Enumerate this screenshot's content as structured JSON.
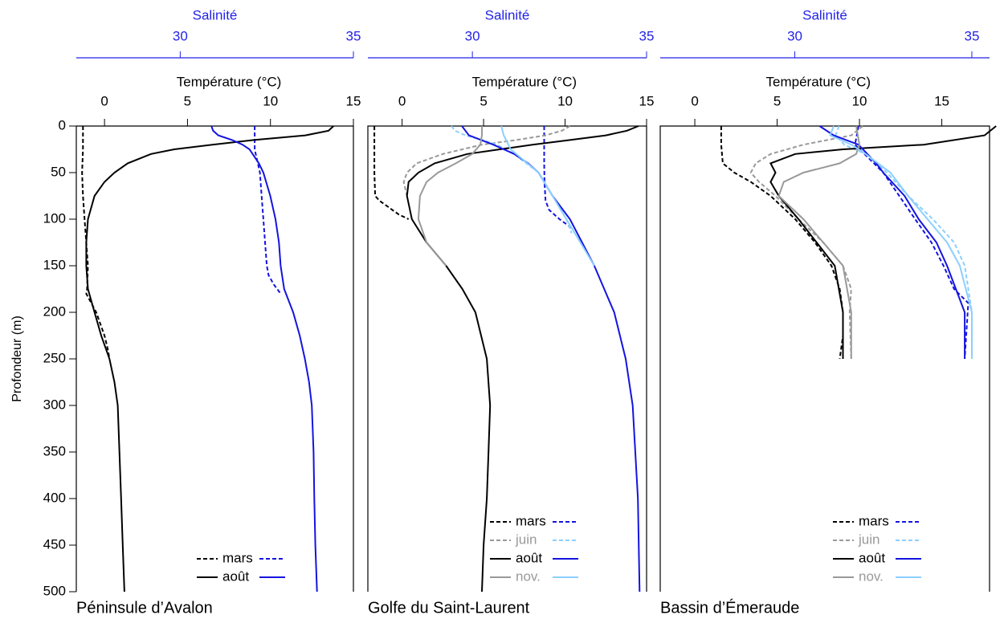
{
  "chart_data": [
    {
      "type": "line",
      "title": "Péninsule d’Avalon",
      "xlabel": "Température (°C)",
      "x2label": "Salinité",
      "ylabel": "Profondeur (m)",
      "xlim": [
        -1.7,
        15
      ],
      "xticks": [
        0,
        5,
        10,
        15
      ],
      "x2lim": [
        27,
        35
      ],
      "x2ticks": [
        30,
        35
      ],
      "x2color": "#2323e8",
      "ylim": [
        0,
        500
      ],
      "invert_y": true,
      "yticks": [
        0,
        50,
        100,
        150,
        200,
        250,
        300,
        350,
        400,
        450,
        500
      ],
      "series": [
        {
          "name": "mars",
          "temperature": {
            "color": "#000000",
            "dash": true,
            "depth": [
              0,
              25,
              50,
              75,
              100,
              125,
              150,
              175,
              180,
              190,
              200,
              210,
              225,
              240,
              250
            ],
            "values": [
              -1.3,
              -1.3,
              -1.35,
              -1.3,
              -1.2,
              -1.1,
              -1.0,
              -1.05,
              -1.1,
              -0.8,
              -0.5,
              -0.3,
              0.0,
              0.2,
              0.3
            ]
          },
          "salinity": {
            "color": "#1414e0",
            "dash": true,
            "depth": [
              0,
              25,
              50,
              75,
              100,
              125,
              150,
              160,
              170,
              180
            ],
            "values": [
              32.15,
              32.15,
              32.3,
              32.35,
              32.4,
              32.45,
              32.5,
              32.55,
              32.7,
              32.9
            ]
          }
        },
        {
          "name": "août",
          "temperature": {
            "color": "#000000",
            "dash": false,
            "depth": [
              0,
              5,
              10,
              15,
              20,
              25,
              30,
              40,
              50,
              60,
              75,
              100,
              125,
              150,
              175,
              200,
              225,
              250,
              275,
              300,
              350,
              400,
              450,
              500
            ],
            "values": [
              13.8,
              13.5,
              12.1,
              9.0,
              6.5,
              4.2,
              2.8,
              1.4,
              0.6,
              0.0,
              -0.6,
              -1.0,
              -1.1,
              -1.1,
              -1.0,
              -0.6,
              -0.2,
              0.3,
              0.6,
              0.8,
              0.9,
              1.0,
              1.1,
              1.2
            ]
          },
          "salinity": {
            "color": "#1414e0",
            "dash": false,
            "depth": [
              0,
              5,
              10,
              15,
              20,
              25,
              40,
              50,
              75,
              100,
              125,
              150,
              175,
              200,
              225,
              250,
              275,
              300,
              350,
              400,
              450,
              500
            ],
            "values": [
              30.9,
              30.95,
              31.1,
              31.5,
              31.8,
              32.0,
              32.27,
              32.4,
              32.6,
              32.75,
              32.85,
              32.9,
              33.0,
              33.26,
              33.45,
              33.6,
              33.72,
              33.8,
              33.85,
              33.87,
              33.9,
              33.95
            ]
          }
        }
      ]
    },
    {
      "type": "line",
      "title": "Golfe du Saint-Laurent",
      "xlabel": "Température (°C)",
      "x2label": "Salinité",
      "xlim": [
        -2.1,
        15
      ],
      "xticks": [
        0,
        5,
        10,
        15
      ],
      "x2lim": [
        27,
        35
      ],
      "x2ticks": [
        30,
        35
      ],
      "x2color": "#2323e8",
      "ylim": [
        0,
        500
      ],
      "invert_y": true,
      "series": [
        {
          "name": "mars",
          "temperature": {
            "color": "#000000",
            "dash": true,
            "depth": [
              0,
              25,
              50,
              75,
              80,
              85,
              90,
              95,
              100
            ],
            "values": [
              -1.7,
              -1.7,
              -1.7,
              -1.65,
              -1.4,
              -1.0,
              -0.6,
              -0.2,
              0.4
            ]
          },
          "salinity": {
            "color": "#1414e0",
            "dash": true,
            "depth": [
              0,
              20,
              40,
              60,
              80,
              90,
              95,
              100,
              110
            ],
            "values": [
              32.06,
              32.06,
              32.06,
              32.07,
              32.1,
              32.2,
              32.35,
              32.5,
              32.87
            ]
          }
        },
        {
          "name": "juin",
          "temperature": {
            "color": "#999999",
            "dash": true,
            "depth": [
              0,
              5,
              10,
              15,
              20,
              30,
              40,
              50,
              60,
              75
            ],
            "values": [
              10.3,
              9.8,
              8.8,
              7.0,
              4.9,
              2.5,
              0.9,
              0.3,
              0.1,
              0.3
            ]
          },
          "salinity": {
            "color": "#8ccfff",
            "dash": true,
            "depth": [
              0,
              5,
              10,
              15,
              20,
              30,
              50,
              75,
              100,
              115
            ],
            "values": [
              29.4,
              29.5,
              29.8,
              30.3,
              30.7,
              31.2,
              31.9,
              32.3,
              32.7,
              32.85
            ]
          }
        },
        {
          "name": "août",
          "temperature": {
            "color": "#000000",
            "dash": false,
            "depth": [
              0,
              5,
              10,
              15,
              20,
              25,
              30,
              40,
              50,
              60,
              75,
              100,
              125,
              150,
              175,
              200,
              250,
              300,
              350,
              400,
              450,
              500
            ],
            "values": [
              14.5,
              13.8,
              12.5,
              10.3,
              8.0,
              6.0,
              4.0,
              2.0,
              1.0,
              0.4,
              0.3,
              0.6,
              1.5,
              2.7,
              3.7,
              4.5,
              5.2,
              5.4,
              5.3,
              5.2,
              5.0,
              4.9
            ]
          },
          "salinity": {
            "color": "#1414e0",
            "dash": false,
            "depth": [
              0,
              10,
              20,
              30,
              40,
              50,
              75,
              100,
              150,
              200,
              250,
              300,
              400,
              500
            ],
            "values": [
              29.7,
              29.9,
              30.6,
              31.2,
              31.6,
              31.9,
              32.3,
              32.8,
              33.5,
              34.07,
              34.4,
              34.6,
              34.75,
              34.8
            ]
          }
        },
        {
          "name": "nov.",
          "temperature": {
            "color": "#999999",
            "dash": false,
            "depth": [
              0,
              10,
              20,
              30,
              40,
              50,
              60,
              75,
              100,
              125,
              150
            ],
            "values": [
              4.9,
              4.9,
              4.8,
              4.3,
              3.3,
              2.2,
              1.5,
              1.1,
              1.0,
              1.5,
              2.7
            ]
          },
          "salinity": {
            "color": "#8ccfff",
            "dash": false,
            "depth": [
              0,
              10,
              25,
              50,
              75,
              100,
              125,
              150
            ],
            "values": [
              30.83,
              30.9,
              31.1,
              31.9,
              32.3,
              32.7,
              33.1,
              33.5
            ]
          }
        }
      ]
    },
    {
      "type": "line",
      "title": "Bassin d’Émeraude",
      "xlabel": "Température (°C)",
      "x2label": "Salinité",
      "xlim": [
        -2.1,
        17.9
      ],
      "xticks": [
        0,
        5,
        10,
        15
      ],
      "x2lim": [
        26.2,
        35.5
      ],
      "x2ticks": [
        30,
        35
      ],
      "x2color": "#2323e8",
      "ylim": [
        0,
        500
      ],
      "invert_y": true,
      "series": [
        {
          "name": "mars",
          "temperature": {
            "color": "#000000",
            "dash": true,
            "depth": [
              0,
              20,
              40,
              50,
              60,
              75,
              100,
              125,
              150,
              175,
              200,
              225,
              250
            ],
            "values": [
              1.6,
              1.6,
              1.7,
              2.4,
              3.4,
              4.6,
              6.1,
              7.3,
              8.3,
              8.8,
              9.0,
              9.0,
              8.8
            ]
          },
          "salinity": {
            "color": "#1414e0",
            "dash": true,
            "depth": [
              0,
              20,
              50,
              75,
              100,
              125,
              150,
              175,
              190,
              250
            ],
            "values": [
              31.8,
              31.7,
              32.5,
              32.95,
              33.4,
              33.86,
              34.2,
              34.5,
              34.9,
              34.8
            ]
          }
        },
        {
          "name": "juin",
          "temperature": {
            "color": "#999999",
            "dash": true,
            "depth": [
              0,
              10,
              20,
              30,
              40,
              50,
              60,
              75,
              100,
              125,
              150,
              175,
              200,
              250
            ],
            "values": [
              10.2,
              9.5,
              6.6,
              4.6,
              3.7,
              3.4,
              3.9,
              4.9,
              6.3,
              7.8,
              9.0,
              9.5,
              9.4,
              9.5
            ]
          },
          "salinity": {
            "color": "#8ccfff",
            "dash": true,
            "depth": [
              0,
              10,
              20,
              30,
              50,
              75,
              100,
              125,
              150,
              200,
              250
            ],
            "values": [
              31.25,
              31.15,
              31.4,
              32.0,
              32.6,
              33.2,
              33.9,
              34.5,
              34.8,
              35.0,
              35.0
            ]
          }
        },
        {
          "name": "août",
          "temperature": {
            "color": "#000000",
            "dash": false,
            "depth": [
              0,
              10,
              20,
              25,
              30,
              40,
              50,
              60,
              75,
              100,
              150,
              200,
              250
            ],
            "values": [
              18.3,
              17.6,
              13.9,
              9.0,
              6.1,
              4.6,
              4.9,
              4.6,
              5.1,
              6.3,
              8.5,
              9.0,
              9.0
            ]
          },
          "salinity": {
            "color": "#1414e0",
            "dash": false,
            "depth": [
              0,
              10,
              20,
              40,
              50,
              75,
              100,
              125,
              150,
              200,
              250
            ],
            "values": [
              30.7,
              31.1,
              31.8,
              32.3,
              32.5,
              33.1,
              33.5,
              34.0,
              34.3,
              34.8,
              34.8
            ]
          }
        },
        {
          "name": "nov.",
          "temperature": {
            "color": "#999999",
            "dash": false,
            "depth": [
              0,
              20,
              30,
              40,
              50,
              60,
              75,
              100,
              150,
              200,
              250
            ],
            "values": [
              9.8,
              10.0,
              9.8,
              8.8,
              6.6,
              5.4,
              5.1,
              6.6,
              9.0,
              9.5,
              9.5
            ]
          },
          "salinity": {
            "color": "#8ccfff",
            "dash": false,
            "depth": [
              0,
              10,
              20,
              30,
              50,
              75,
              100,
              125,
              150,
              200,
              250
            ],
            "values": [
              31.1,
              31.0,
              31.6,
              32.0,
              32.7,
              33.2,
              33.75,
              34.3,
              34.66,
              35.0,
              35.0
            ]
          }
        }
      ]
    }
  ]
}
